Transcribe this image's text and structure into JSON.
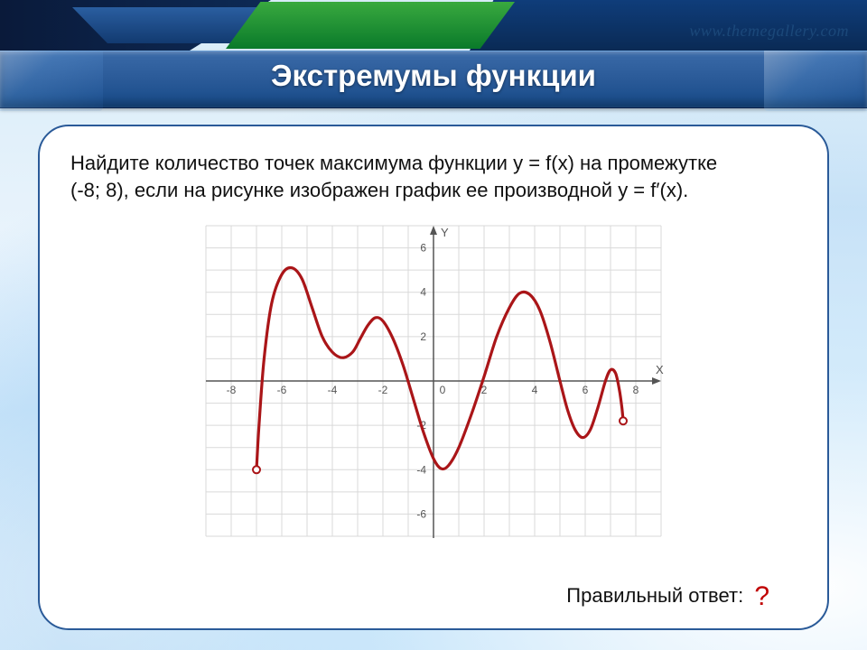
{
  "title": "Экстремумы функции",
  "watermark": "www.themegallery.com",
  "question_line1": "Найдите количество точек максимума функции y = f(x) на промежутке",
  "question_line2": "(-8; 8), если на рисунке  изображен график ее производной y = f′(x).",
  "answer_label": "Правильный  ответ:",
  "answer_value": "?",
  "date_stub": "",
  "chart": {
    "type": "line",
    "xlim": [
      -9,
      9
    ],
    "ylim": [
      -7,
      7
    ],
    "xtick_step": 2,
    "ytick_step": 2,
    "x_ticks": [
      -8,
      -6,
      -4,
      -2,
      2,
      4,
      6,
      8
    ],
    "y_ticks": [
      -6,
      -4,
      -2,
      2,
      4,
      6
    ],
    "origin_label": "0",
    "x_axis_label": "X",
    "y_axis_label": "Y",
    "grid_color": "#d9d9d9",
    "axis_color": "#555555",
    "tick_label_color": "#555555",
    "tick_label_fontsize": 12,
    "background_color": "#ffffff",
    "line_color": "#aa1518",
    "line_width": 3.2,
    "open_point_radius": 4,
    "open_point_fill": "#ffffff",
    "open_points": [
      {
        "x": -7.0,
        "y": -4.0
      },
      {
        "x": 7.5,
        "y": -1.8
      }
    ],
    "series": [
      {
        "x": -7.0,
        "y": -4.0
      },
      {
        "x": -6.9,
        "y": -2.0
      },
      {
        "x": -6.7,
        "y": 1.0
      },
      {
        "x": -6.4,
        "y": 3.5
      },
      {
        "x": -6.0,
        "y": 4.8
      },
      {
        "x": -5.6,
        "y": 5.1
      },
      {
        "x": -5.2,
        "y": 4.6
      },
      {
        "x": -4.8,
        "y": 3.3
      },
      {
        "x": -4.4,
        "y": 2.0
      },
      {
        "x": -4.0,
        "y": 1.3
      },
      {
        "x": -3.6,
        "y": 1.05
      },
      {
        "x": -3.2,
        "y": 1.3
      },
      {
        "x": -2.9,
        "y": 1.9
      },
      {
        "x": -2.6,
        "y": 2.5
      },
      {
        "x": -2.3,
        "y": 2.85
      },
      {
        "x": -2.0,
        "y": 2.7
      },
      {
        "x": -1.6,
        "y": 1.9
      },
      {
        "x": -1.2,
        "y": 0.7
      },
      {
        "x": -0.8,
        "y": -0.8
      },
      {
        "x": -0.4,
        "y": -2.3
      },
      {
        "x": 0.0,
        "y": -3.5
      },
      {
        "x": 0.3,
        "y": -3.95
      },
      {
        "x": 0.6,
        "y": -3.8
      },
      {
        "x": 1.0,
        "y": -3.0
      },
      {
        "x": 1.5,
        "y": -1.5
      },
      {
        "x": 2.0,
        "y": 0.2
      },
      {
        "x": 2.5,
        "y": 2.0
      },
      {
        "x": 3.0,
        "y": 3.3
      },
      {
        "x": 3.4,
        "y": 3.95
      },
      {
        "x": 3.8,
        "y": 3.9
      },
      {
        "x": 4.2,
        "y": 3.2
      },
      {
        "x": 4.6,
        "y": 1.8
      },
      {
        "x": 5.0,
        "y": 0.0
      },
      {
        "x": 5.3,
        "y": -1.3
      },
      {
        "x": 5.6,
        "y": -2.2
      },
      {
        "x": 5.9,
        "y": -2.55
      },
      {
        "x": 6.2,
        "y": -2.2
      },
      {
        "x": 6.5,
        "y": -1.2
      },
      {
        "x": 6.8,
        "y": 0.0
      },
      {
        "x": 7.0,
        "y": 0.5
      },
      {
        "x": 7.2,
        "y": 0.35
      },
      {
        "x": 7.35,
        "y": -0.4
      },
      {
        "x": 7.45,
        "y": -1.2
      },
      {
        "x": 7.5,
        "y": -1.8
      }
    ]
  },
  "colors": {
    "title_bar_top": "#3a6aa8",
    "title_bar_bottom": "#164a88",
    "hdr_green_top": "#39a93f",
    "hdr_green_bottom": "#0a7a2a",
    "panel_border": "#2a5a98",
    "answer_qmark": "#c00000"
  }
}
